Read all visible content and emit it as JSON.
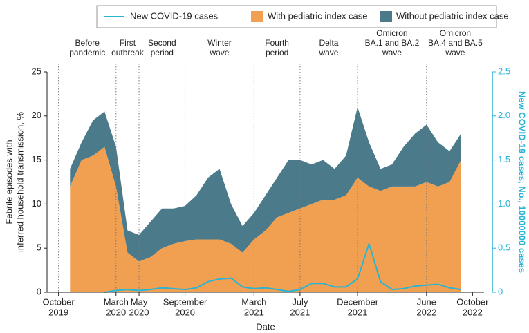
{
  "chart_data": {
    "type": "stacked-area-line",
    "xlabel": "Date",
    "ylabel": [
      "Febrile episodes with",
      "inferred household transmission, %"
    ],
    "y2label": "New COVID-19 cases, No., 10000000 cases",
    "legend": "top",
    "x": [
      "2019-11",
      "2019-12",
      "2020-01",
      "2020-02",
      "2020-03",
      "2020-04",
      "2020-05",
      "2020-06",
      "2020-07",
      "2020-08",
      "2020-09",
      "2020-10",
      "2020-11",
      "2020-12",
      "2021-01",
      "2021-02",
      "2021-03",
      "2021-04",
      "2021-05",
      "2021-06",
      "2021-07",
      "2021-08",
      "2021-09",
      "2021-10",
      "2021-11",
      "2021-12",
      "2022-01",
      "2022-02",
      "2022-03",
      "2022-04",
      "2022-05",
      "2022-06",
      "2022-07",
      "2022-08",
      "2022-09"
    ],
    "series": [
      {
        "name": "With pediatric index case",
        "color": "#f0a050",
        "values": [
          12,
          15,
          15.5,
          16.5,
          12,
          4.5,
          3.5,
          4,
          5,
          5.5,
          5.8,
          6,
          6,
          6,
          5.5,
          4.5,
          6,
          7,
          8.5,
          9,
          9.5,
          10,
          10.5,
          10.5,
          11,
          13,
          12,
          11.5,
          12,
          12,
          12,
          12.5,
          12,
          12.5,
          15
        ]
      },
      {
        "name": "Without pediatric index case",
        "color": "#4b7a8a",
        "values": [
          2,
          2,
          4,
          4,
          4.5,
          2.5,
          3,
          4,
          4.5,
          4,
          4,
          5,
          7,
          8,
          4.5,
          3,
          3,
          4,
          4.5,
          6,
          5.5,
          4.5,
          4.5,
          3.5,
          4.5,
          8,
          5,
          2.5,
          2.5,
          4.5,
          6,
          6.5,
          5,
          3.5,
          3
        ]
      },
      {
        "name": "New COVID-19 cases",
        "color": "#29b4d6",
        "axis": "y2",
        "values": [
          null,
          null,
          null,
          0,
          0.02,
          0.03,
          0.02,
          0.03,
          0.05,
          0.04,
          0.03,
          0.05,
          0.12,
          0.15,
          0.16,
          0.06,
          0.04,
          0.05,
          0.03,
          0.01,
          0.03,
          0.1,
          0.1,
          0.06,
          0.06,
          0.15,
          0.55,
          0.12,
          0.03,
          0.04,
          0.07,
          0.08,
          0.09,
          0.05,
          0.03
        ]
      }
    ],
    "xlim": [
      "2019-09",
      "2022-11"
    ],
    "xticks": [
      {
        "value": "2019-10",
        "label": [
          "October",
          "2019"
        ]
      },
      {
        "value": "2020-03",
        "label": [
          "March",
          "2020"
        ]
      },
      {
        "value": "2020-05",
        "label": [
          "May",
          "2020"
        ]
      },
      {
        "value": "2020-09",
        "label": [
          "September",
          "2020"
        ]
      },
      {
        "value": "2021-03",
        "label": [
          "March",
          "2021"
        ]
      },
      {
        "value": "2021-07",
        "label": [
          "July",
          "2021"
        ]
      },
      {
        "value": "2021-12",
        "label": [
          "December",
          "2021"
        ]
      },
      {
        "value": "2022-06",
        "label": [
          "June",
          "2022"
        ]
      },
      {
        "value": "2022-10",
        "label": [
          "October",
          "2022"
        ]
      }
    ],
    "ylim": [
      0,
      25
    ],
    "yticks": [
      0,
      5,
      10,
      15,
      20,
      25
    ],
    "y2lim": [
      0,
      2.5
    ],
    "y2ticks": [
      0,
      0.5,
      {
        "value": 1,
        "label": "1.0"
      },
      1.5,
      {
        "value": 2,
        "label": "2.0"
      },
      2.5
    ],
    "periods": [
      {
        "start": "2019-10",
        "label": [
          "Before",
          "pandemic"
        ]
      },
      {
        "start": "2020-03",
        "label": [
          "First",
          "outbreak"
        ]
      },
      {
        "start": "2020-05",
        "label": [
          "Second",
          "period"
        ]
      },
      {
        "start": "2020-09",
        "label": [
          "Winter",
          "wave"
        ]
      },
      {
        "start": "2021-03",
        "label": [
          "Fourth",
          "period"
        ]
      },
      {
        "start": "2021-07",
        "label": [
          "Delta",
          "wave"
        ]
      },
      {
        "start": "2021-12",
        "label": [
          "Omicron",
          "BA.1 and BA.2",
          "wave"
        ]
      },
      {
        "start": "2022-06",
        "label": [
          "Omicron",
          "BA.4 and BA.5",
          "wave"
        ]
      }
    ]
  }
}
